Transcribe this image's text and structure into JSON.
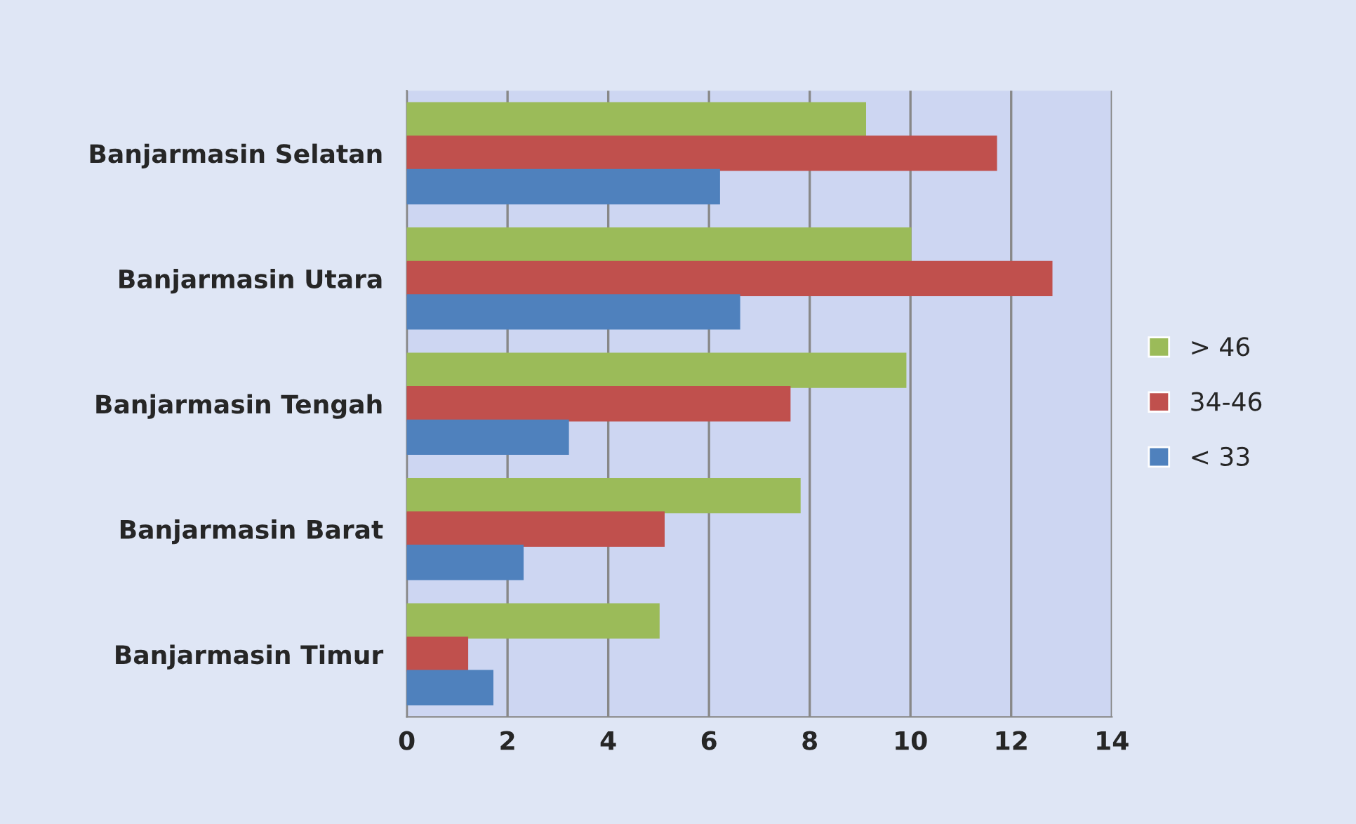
{
  "chart_data": {
    "type": "bar",
    "orientation": "horizontal",
    "categories": [
      "Banjarmasin Selatan",
      "Banjarmasin Utara",
      "Banjarmasin Tengah",
      "Banjarmasin Barat",
      "Banjarmasin Timur"
    ],
    "series": [
      {
        "name": "> 46",
        "color": "#9bbb59",
        "values": [
          9.1,
          10,
          9.9,
          7.8,
          5
        ]
      },
      {
        "name": "34-46",
        "color": "#c0504d",
        "values": [
          11.7,
          12.8,
          7.6,
          5.1,
          1.2
        ]
      },
      {
        "name": "< 33",
        "color": "#4f81bd",
        "values": [
          6.2,
          6.6,
          3.2,
          2.3,
          1.7
        ]
      }
    ],
    "xlim": [
      0,
      14
    ],
    "xticks": [
      0,
      2,
      4,
      6,
      8,
      10,
      12,
      14
    ],
    "grid": "x",
    "legend": "right"
  }
}
